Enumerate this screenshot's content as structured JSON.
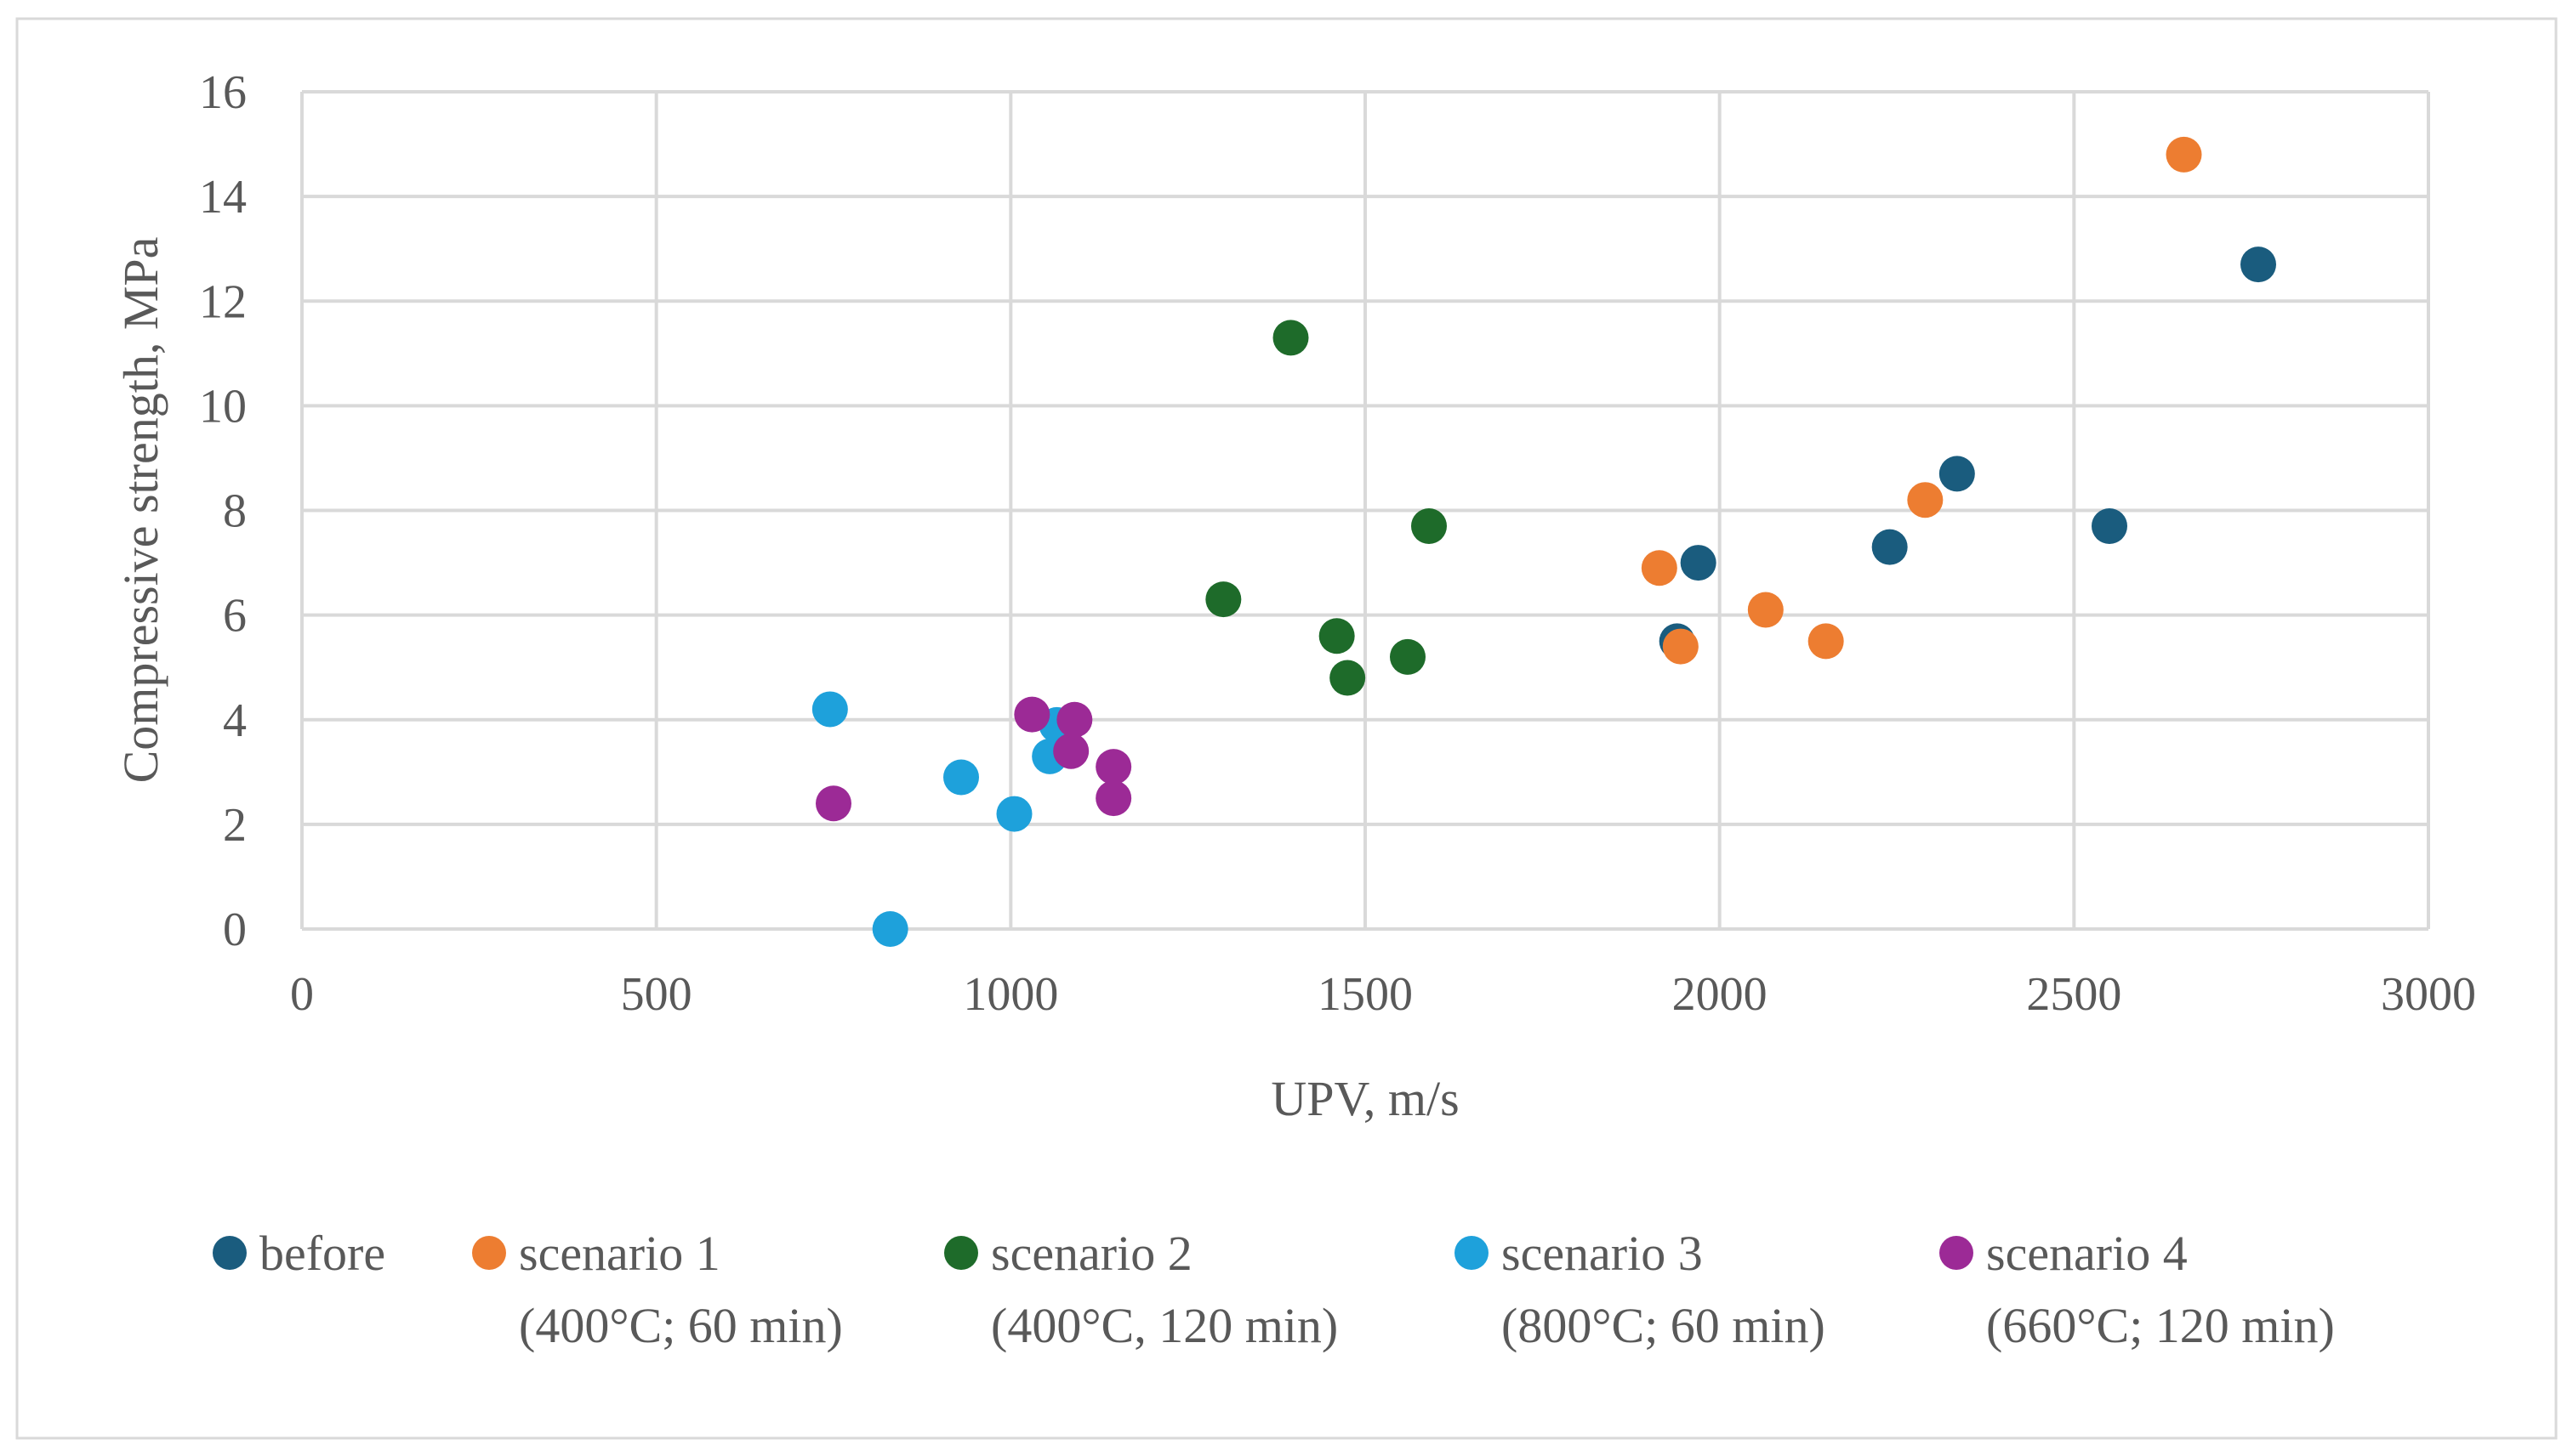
{
  "chart_data": {
    "type": "scatter",
    "title": "",
    "xlabel": "UPV, m/s",
    "ylabel": "Compressive strength, MPa",
    "xlim": [
      0,
      3000
    ],
    "ylim": [
      0,
      16
    ],
    "x_ticks": [
      "0",
      "500",
      "1000",
      "1500",
      "2000",
      "2500",
      "3000"
    ],
    "y_ticks": [
      "0",
      "2",
      "4",
      "6",
      "8",
      "10",
      "12",
      "14",
      "16"
    ],
    "grid": true,
    "legend_position": "bottom",
    "series": [
      {
        "name": "before",
        "name_line2": "",
        "color": "#1a5c7e",
        "points": [
          [
            1940,
            5.5
          ],
          [
            1970,
            7.0
          ],
          [
            2240,
            7.3
          ],
          [
            2335,
            8.7
          ],
          [
            2550,
            7.7
          ],
          [
            2760,
            12.7
          ]
        ]
      },
      {
        "name": "scenario 1",
        "name_line2": "(400°C; 60 min)",
        "color": "#ed7d31",
        "points": [
          [
            1915,
            6.9
          ],
          [
            1945,
            5.4
          ],
          [
            2065,
            6.1
          ],
          [
            2150,
            5.5
          ],
          [
            2290,
            8.2
          ],
          [
            2655,
            14.8
          ]
        ]
      },
      {
        "name": "scenario 2",
        "name_line2": "(400°C, 120 min)",
        "color": "#1e6b2a",
        "points": [
          [
            1300,
            6.3
          ],
          [
            1395,
            11.3
          ],
          [
            1460,
            5.6
          ],
          [
            1475,
            4.8
          ],
          [
            1560,
            5.2
          ],
          [
            1590,
            7.7
          ]
        ]
      },
      {
        "name": "scenario 3",
        "name_line2": "(800°C; 60 min)",
        "color": "#1ea1db",
        "points": [
          [
            745,
            4.2
          ],
          [
            830,
            0.0
          ],
          [
            930,
            2.9
          ],
          [
            1005,
            2.2
          ],
          [
            1055,
            3.3
          ],
          [
            1065,
            3.9
          ]
        ]
      },
      {
        "name": "scenario 4",
        "name_line2": "(660°C; 120 min)",
        "color": "#9c2a96",
        "points": [
          [
            750,
            2.4
          ],
          [
            1030,
            4.1
          ],
          [
            1085,
            3.4
          ],
          [
            1090,
            4.0
          ],
          [
            1145,
            3.1
          ],
          [
            1145,
            2.5
          ]
        ]
      }
    ]
  }
}
